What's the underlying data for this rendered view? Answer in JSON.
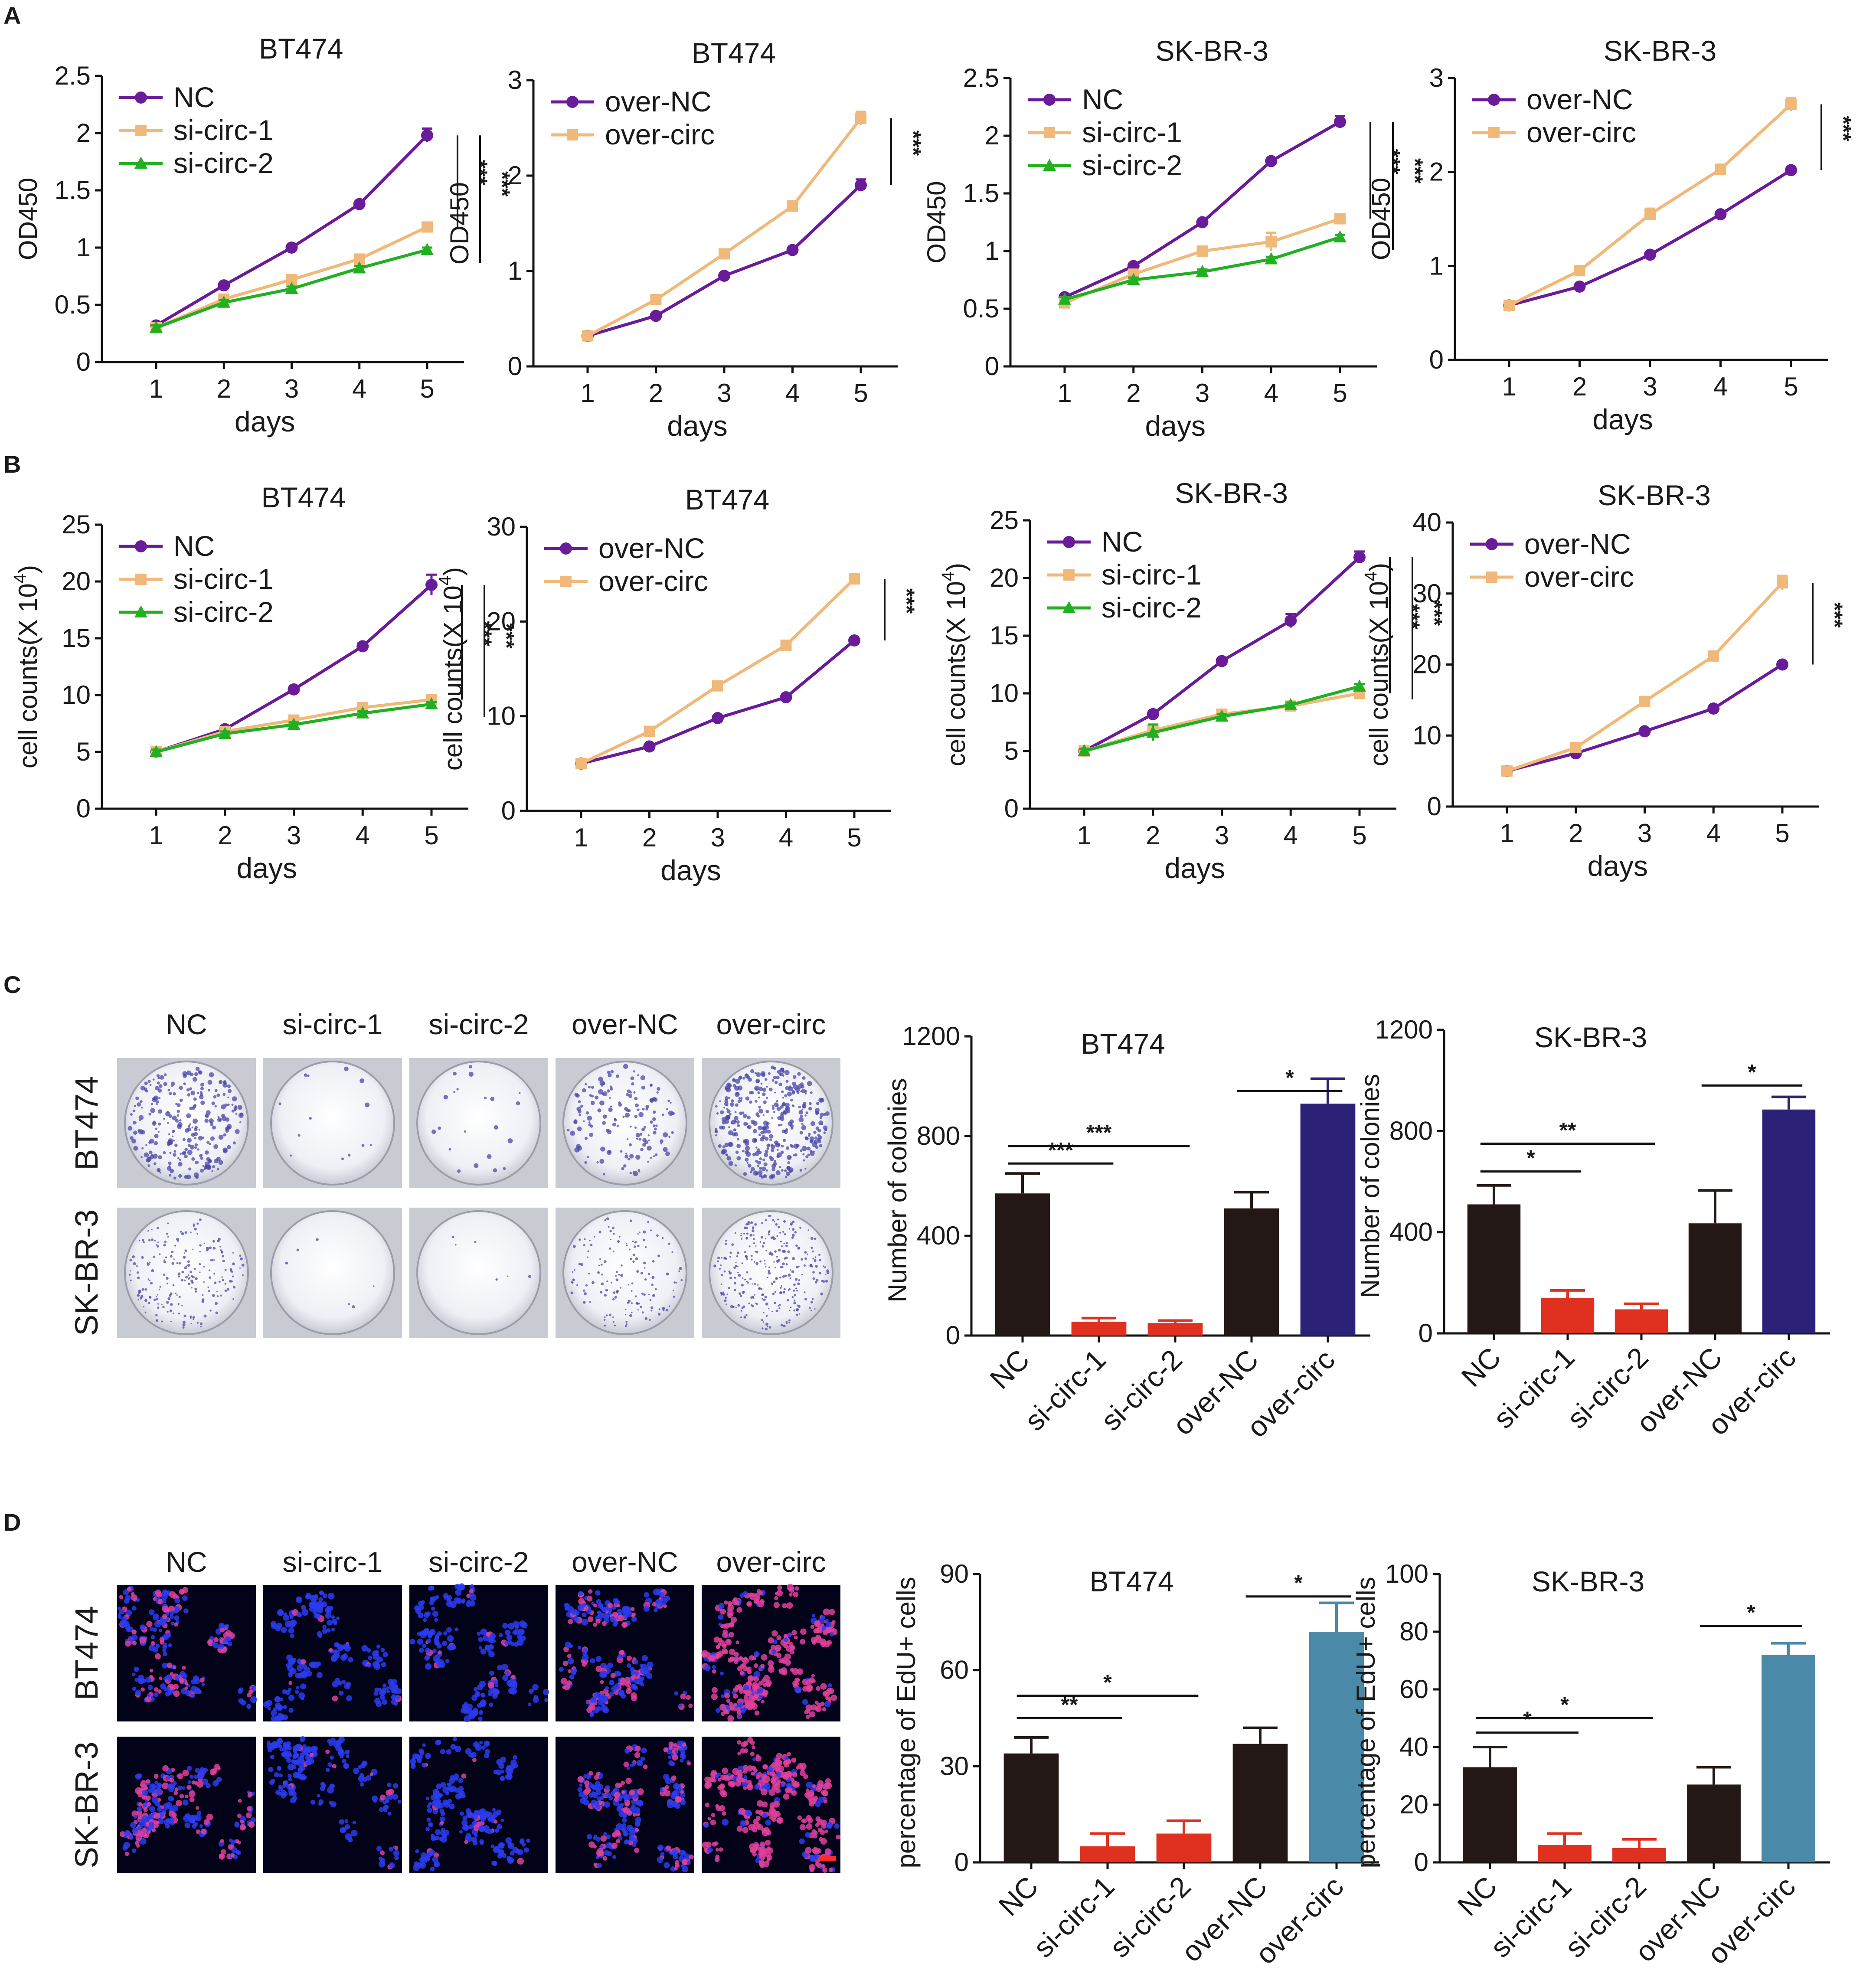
{
  "panels": [
    "A",
    "B",
    "C",
    "D"
  ],
  "colors": {
    "NC": "#6a1b9a",
    "si-circ-1": "#f0b97a",
    "si-circ-2": "#22b022",
    "over-NC": "#6a1b9a",
    "over-circ": "#f0b97a",
    "bar_black": "#231815",
    "bar_red": "#e03020",
    "bar_navy": "#2b2277",
    "bar_teal": "#4a89a8"
  },
  "image_panels": {
    "C": {
      "columns": [
        "NC",
        "si-circ-1",
        "si-circ-2",
        "over-NC",
        "over-circ"
      ],
      "rows": [
        "BT474",
        "SK-BR-3"
      ],
      "density": [
        [
          1.0,
          0.05,
          0.08,
          0.6,
          1.4
        ],
        [
          0.7,
          0.02,
          0.02,
          0.5,
          1.0
        ]
      ]
    },
    "D": {
      "columns": [
        "NC",
        "si-circ-1",
        "si-circ-2",
        "over-NC",
        "over-circ"
      ],
      "rows": [
        "BT474",
        "SK-BR-3"
      ],
      "edu": [
        [
          0.35,
          0.06,
          0.08,
          0.35,
          0.8
        ],
        [
          0.4,
          0.08,
          0.06,
          0.35,
          0.85
        ]
      ]
    }
  },
  "chart_data": [
    {
      "id": "A1",
      "type": "line",
      "title": "BT474",
      "xlabel": "days",
      "ylabel": "OD450",
      "x": [
        1,
        2,
        3,
        4,
        5
      ],
      "ylim": [
        0,
        2.5
      ],
      "yticks": [
        "0",
        "0.5",
        "1",
        "1.5",
        "2",
        "2.5"
      ],
      "ytick_values": [
        0,
        0.5,
        1,
        1.5,
        2,
        2.5
      ],
      "series": [
        {
          "name": "NC",
          "marker": "circle",
          "values": [
            0.32,
            0.67,
            1.0,
            1.38,
            1.98
          ],
          "errors": [
            0.02,
            0.02,
            0.02,
            0.02,
            0.06
          ]
        },
        {
          "name": "si-circ-1",
          "marker": "square",
          "values": [
            0.3,
            0.55,
            0.72,
            0.9,
            1.18
          ],
          "errors": [
            0.02,
            0.02,
            0.02,
            0.03,
            0.03
          ]
        },
        {
          "name": "si-circ-2",
          "marker": "triangle",
          "values": [
            0.3,
            0.52,
            0.64,
            0.82,
            0.98
          ],
          "errors": [
            0.02,
            0.02,
            0.02,
            0.02,
            0.02
          ]
        }
      ],
      "significance": [
        {
          "stars": "***",
          "y1": 1.98,
          "y2": 1.18
        },
        {
          "stars": "***",
          "y1": 1.98,
          "y2": 0.98
        }
      ]
    },
    {
      "id": "A2",
      "type": "line",
      "title": "BT474",
      "xlabel": "days",
      "ylabel": "OD450",
      "x": [
        1,
        2,
        3,
        4,
        5
      ],
      "ylim": [
        0,
        3
      ],
      "yticks": [
        "0",
        "1",
        "2",
        "3"
      ],
      "ytick_values": [
        0,
        1,
        2,
        3
      ],
      "series": [
        {
          "name": "over-NC",
          "marker": "circle",
          "values": [
            0.32,
            0.53,
            0.95,
            1.22,
            1.9
          ],
          "errors": [
            0.02,
            0.02,
            0.02,
            0.02,
            0.06
          ]
        },
        {
          "name": "over-circ",
          "marker": "square",
          "values": [
            0.32,
            0.7,
            1.18,
            1.68,
            2.6
          ],
          "errors": [
            0.02,
            0.02,
            0.02,
            0.05,
            0.07
          ]
        }
      ],
      "significance": [
        {
          "stars": "***",
          "y1": 2.6,
          "y2": 1.9
        }
      ]
    },
    {
      "id": "A3",
      "type": "line",
      "title": "SK-BR-3",
      "xlabel": "days",
      "ylabel": "OD450",
      "x": [
        1,
        2,
        3,
        4,
        5
      ],
      "ylim": [
        0,
        2.5
      ],
      "yticks": [
        "0",
        "0.5",
        "1",
        "1.5",
        "2",
        "2.5"
      ],
      "ytick_values": [
        0,
        0.5,
        1,
        1.5,
        2,
        2.5
      ],
      "series": [
        {
          "name": "NC",
          "marker": "circle",
          "values": [
            0.6,
            0.87,
            1.25,
            1.78,
            2.12
          ],
          "errors": [
            0.02,
            0.02,
            0.02,
            0.02,
            0.05
          ]
        },
        {
          "name": "si-circ-1",
          "marker": "square",
          "values": [
            0.55,
            0.8,
            1.0,
            1.08,
            1.28
          ],
          "errors": [
            0.02,
            0.02,
            0.02,
            0.08,
            0.03
          ]
        },
        {
          "name": "si-circ-2",
          "marker": "triangle",
          "values": [
            0.58,
            0.75,
            0.82,
            0.93,
            1.12
          ],
          "errors": [
            0.02,
            0.02,
            0.02,
            0.02,
            0.02
          ]
        }
      ],
      "significance": [
        {
          "stars": "***",
          "y1": 2.12,
          "y2": 1.28
        },
        {
          "stars": "***",
          "y1": 2.12,
          "y2": 1.12
        }
      ]
    },
    {
      "id": "A4",
      "type": "line",
      "title": "SK-BR-3",
      "xlabel": "days",
      "ylabel": "OD450",
      "x": [
        1,
        2,
        3,
        4,
        5
      ],
      "ylim": [
        0,
        3
      ],
      "yticks": [
        "0",
        "1",
        "2",
        "3"
      ],
      "ytick_values": [
        0,
        1,
        2,
        3
      ],
      "series": [
        {
          "name": "over-NC",
          "marker": "circle",
          "values": [
            0.58,
            0.78,
            1.12,
            1.55,
            2.02
          ],
          "errors": [
            0.02,
            0.02,
            0.02,
            0.02,
            0.02
          ]
        },
        {
          "name": "over-circ",
          "marker": "square",
          "values": [
            0.58,
            0.95,
            1.55,
            2.03,
            2.72
          ],
          "errors": [
            0.02,
            0.03,
            0.06,
            0.03,
            0.07
          ]
        }
      ],
      "significance": [
        {
          "stars": "***",
          "y1": 2.72,
          "y2": 2.02
        }
      ]
    },
    {
      "id": "B1",
      "type": "line",
      "title": "BT474",
      "xlabel": "days",
      "ylabel": "cell counts(X 10",
      "ylabel_sup": "4",
      "ylabel_end": ")",
      "x": [
        1,
        2,
        3,
        4,
        5
      ],
      "ylim": [
        0,
        25
      ],
      "yticks": [
        "0",
        "5",
        "10",
        "15",
        "20",
        "25"
      ],
      "ytick_values": [
        0,
        5,
        10,
        15,
        20,
        25
      ],
      "series": [
        {
          "name": "NC",
          "marker": "circle",
          "values": [
            5.0,
            7.0,
            10.5,
            14.3,
            19.7
          ],
          "errors": [
            0.2,
            0.2,
            0.2,
            0.3,
            0.9
          ]
        },
        {
          "name": "si-circ-1",
          "marker": "square",
          "values": [
            5.0,
            6.8,
            7.8,
            8.9,
            9.6
          ],
          "errors": [
            0.2,
            0.2,
            0.2,
            0.2,
            0.2
          ]
        },
        {
          "name": "si-circ-2",
          "marker": "triangle",
          "values": [
            5.0,
            6.6,
            7.4,
            8.4,
            9.2
          ],
          "errors": [
            0.2,
            0.2,
            0.2,
            0.2,
            0.2
          ]
        }
      ],
      "significance": [
        {
          "stars": "***",
          "y1": 19.7,
          "y2": 9.6
        },
        {
          "stars": "***",
          "y1": 19.7,
          "y2": 9.2
        }
      ]
    },
    {
      "id": "B2",
      "type": "line",
      "title": "BT474",
      "xlabel": "days",
      "ylabel": "cell counts(X 10",
      "ylabel_sup": "4",
      "ylabel_end": ")",
      "x": [
        1,
        2,
        3,
        4,
        5
      ],
      "ylim": [
        0,
        30
      ],
      "yticks": [
        "0",
        "10",
        "20",
        "30"
      ],
      "ytick_values": [
        0,
        10,
        20,
        30
      ],
      "series": [
        {
          "name": "over-NC",
          "marker": "circle",
          "values": [
            5.0,
            6.8,
            9.8,
            12.0,
            18.0
          ],
          "errors": [
            0.2,
            0.2,
            0.2,
            0.2,
            0.2
          ]
        },
        {
          "name": "over-circ",
          "marker": "square",
          "values": [
            5.0,
            8.4,
            13.2,
            17.5,
            24.5
          ],
          "errors": [
            0.2,
            0.2,
            0.2,
            0.2,
            0.2
          ]
        }
      ],
      "significance": [
        {
          "stars": "***",
          "y1": 24.5,
          "y2": 18.0
        }
      ]
    },
    {
      "id": "B3",
      "type": "line",
      "title": "SK-BR-3",
      "xlabel": "days",
      "ylabel": "cell counts(X 10",
      "ylabel_sup": "4",
      "ylabel_end": ")",
      "x": [
        1,
        2,
        3,
        4,
        5
      ],
      "ylim": [
        0,
        25
      ],
      "yticks": [
        "0",
        "5",
        "10",
        "15",
        "20",
        "25"
      ],
      "ytick_values": [
        0,
        5,
        10,
        15,
        20,
        25
      ],
      "series": [
        {
          "name": "NC",
          "marker": "circle",
          "values": [
            5.0,
            8.2,
            12.8,
            16.3,
            21.8
          ],
          "errors": [
            0.2,
            0.2,
            0.2,
            0.6,
            0.5
          ]
        },
        {
          "name": "si-circ-1",
          "marker": "square",
          "values": [
            5.0,
            6.8,
            8.2,
            8.9,
            10.0
          ],
          "errors": [
            0.2,
            0.2,
            0.2,
            0.2,
            0.2
          ]
        },
        {
          "name": "si-circ-2",
          "marker": "triangle",
          "values": [
            5.0,
            6.6,
            8.0,
            9.0,
            10.6
          ],
          "errors": [
            0.2,
            0.7,
            0.2,
            0.2,
            0.2
          ]
        }
      ],
      "significance": [
        {
          "stars": "***",
          "y1": 21.8,
          "y2": 10.0
        },
        {
          "stars": "***",
          "y1": 21.8,
          "y2": 10.6
        }
      ]
    },
    {
      "id": "B4",
      "type": "line",
      "title": "SK-BR-3",
      "xlabel": "days",
      "ylabel": "cell counts(X 10",
      "ylabel_sup": "4",
      "ylabel_end": ")",
      "x": [
        1,
        2,
        3,
        4,
        5
      ],
      "ylim": [
        0,
        40
      ],
      "yticks": [
        "0",
        "10",
        "20",
        "30",
        "40"
      ],
      "ytick_values": [
        0,
        10,
        20,
        30,
        40
      ],
      "series": [
        {
          "name": "over-NC",
          "marker": "circle",
          "values": [
            5.0,
            7.5,
            10.6,
            13.8,
            20.0
          ],
          "errors": [
            0.2,
            0.2,
            0.2,
            0.2,
            0.2
          ]
        },
        {
          "name": "over-circ",
          "marker": "square",
          "values": [
            5.0,
            8.3,
            14.8,
            21.2,
            31.5
          ],
          "errors": [
            0.2,
            0.2,
            0.2,
            0.2,
            1.0
          ]
        }
      ],
      "significance": [
        {
          "stars": "***",
          "y1": 31.5,
          "y2": 20.0
        }
      ]
    },
    {
      "id": "C1",
      "type": "bar",
      "title": "BT474",
      "ylabel": "Number of colonies",
      "categories": [
        "NC",
        "si-circ-1",
        "si-circ-2",
        "over-NC",
        "over-circ"
      ],
      "values": [
        570,
        55,
        50,
        510,
        930
      ],
      "errors": [
        80,
        15,
        10,
        65,
        100
      ],
      "colors": [
        "bar_black",
        "bar_red",
        "bar_red",
        "bar_black",
        "bar_navy"
      ],
      "ylim": [
        0,
        1200
      ],
      "yticks": [
        "0",
        "400",
        "800",
        "1200"
      ],
      "ytick_values": [
        0,
        400,
        800,
        1200
      ],
      "significance": [
        {
          "from": 0,
          "to": 1,
          "stars": "***",
          "level": 690
        },
        {
          "from": 0,
          "to": 2,
          "stars": "***",
          "level": 760
        },
        {
          "from": 3,
          "to": 4,
          "stars": "*",
          "level": 980
        }
      ]
    },
    {
      "id": "C2",
      "type": "bar",
      "title": "SK-BR-3",
      "ylabel": "Number of colonies",
      "categories": [
        "NC",
        "si-circ-1",
        "si-circ-2",
        "over-NC",
        "over-circ"
      ],
      "values": [
        510,
        140,
        95,
        435,
        885
      ],
      "errors": [
        75,
        30,
        22,
        130,
        50
      ],
      "colors": [
        "bar_black",
        "bar_red",
        "bar_red",
        "bar_black",
        "bar_navy"
      ],
      "ylim": [
        0,
        1200
      ],
      "yticks": [
        "0",
        "400",
        "800",
        "1200"
      ],
      "ytick_values": [
        0,
        400,
        800,
        1200
      ],
      "significance": [
        {
          "from": 0,
          "to": 1,
          "stars": "*",
          "level": 640
        },
        {
          "from": 0,
          "to": 2,
          "stars": "**",
          "level": 750
        },
        {
          "from": 3,
          "to": 4,
          "stars": "*",
          "level": 980
        }
      ]
    },
    {
      "id": "D1",
      "type": "bar",
      "title": "BT474",
      "ylabel": "percentage of EdU+ cells",
      "categories": [
        "NC",
        "si-circ-1",
        "si-circ-2",
        "over-NC",
        "over-circ"
      ],
      "values": [
        34,
        5,
        9,
        37,
        72
      ],
      "errors": [
        5,
        4,
        4,
        5,
        9
      ],
      "colors": [
        "bar_black",
        "bar_red",
        "bar_red",
        "bar_black",
        "bar_teal"
      ],
      "ylim": [
        0,
        90
      ],
      "yticks": [
        "0",
        "30",
        "60",
        "90"
      ],
      "ytick_values": [
        0,
        30,
        60,
        90
      ],
      "significance": [
        {
          "from": 0,
          "to": 1,
          "stars": "**",
          "level": 45
        },
        {
          "from": 0,
          "to": 2,
          "stars": "*",
          "level": 52
        },
        {
          "from": 3,
          "to": 4,
          "stars": "*",
          "level": 83
        }
      ]
    },
    {
      "id": "D2",
      "type": "bar",
      "title": "SK-BR-3",
      "ylabel": "percentage of EdU+ cells",
      "categories": [
        "NC",
        "si-circ-1",
        "si-circ-2",
        "over-NC",
        "over-circ"
      ],
      "values": [
        33,
        6,
        5,
        27,
        72
      ],
      "errors": [
        7,
        4,
        3,
        6,
        4
      ],
      "colors": [
        "bar_black",
        "bar_red",
        "bar_red",
        "bar_black",
        "bar_teal"
      ],
      "ylim": [
        0,
        100
      ],
      "yticks": [
        "0",
        "20",
        "40",
        "60",
        "80",
        "100"
      ],
      "ytick_values": [
        0,
        20,
        40,
        60,
        80,
        100
      ],
      "significance": [
        {
          "from": 0,
          "to": 1,
          "stars": "*",
          "level": 45
        },
        {
          "from": 0,
          "to": 2,
          "stars": "*",
          "level": 50
        },
        {
          "from": 3,
          "to": 4,
          "stars": "*",
          "level": 82
        }
      ]
    }
  ]
}
